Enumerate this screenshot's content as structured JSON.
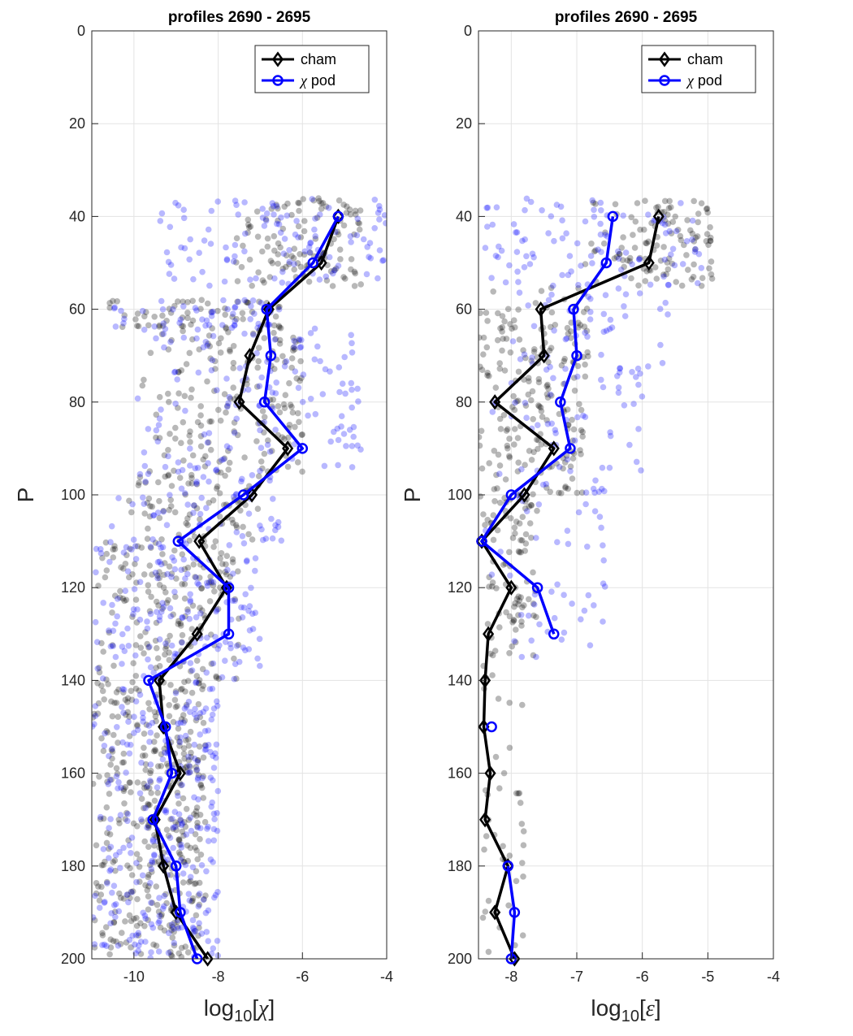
{
  "chart_data": [
    {
      "type": "line",
      "title": "profiles 2690 - 2695",
      "xlabel": {
        "prefix": "log",
        "sub": "10",
        "open": "[",
        "symbol": "χ",
        "close": "]"
      },
      "ylabel": "P",
      "xlim": [
        -11,
        -4
      ],
      "ylim": [
        0,
        200
      ],
      "y_reversed": true,
      "x_ticks": [
        -10,
        -8,
        -6,
        -4
      ],
      "x_tick_labels": [
        "-10",
        "-8",
        "-6",
        "-4"
      ],
      "y_ticks": [
        0,
        20,
        40,
        60,
        80,
        100,
        120,
        140,
        160,
        180,
        200
      ],
      "y_tick_labels": [
        "0",
        "20",
        "40",
        "60",
        "80",
        "100",
        "120",
        "140",
        "160",
        "180",
        "200"
      ],
      "grid": true,
      "legend_position": "top-right",
      "series": [
        {
          "name": "cham",
          "color": "#000000",
          "marker": "diamond",
          "points": [
            [
              -5.15,
              40
            ],
            [
              -5.55,
              50
            ],
            [
              -6.8,
              60
            ],
            [
              -7.25,
              70
            ],
            [
              -7.5,
              80
            ],
            [
              -6.35,
              90
            ],
            [
              -7.2,
              100
            ],
            [
              -8.45,
              110
            ],
            [
              -7.8,
              120
            ],
            [
              -8.5,
              130
            ],
            [
              -9.4,
              140
            ],
            [
              -9.3,
              150
            ],
            [
              -8.9,
              160
            ],
            [
              -9.5,
              170
            ],
            [
              -9.3,
              180
            ],
            [
              -9.0,
              190
            ],
            [
              -8.25,
              200
            ]
          ]
        },
        {
          "name": "χ pod",
          "name_parts": {
            "symbol": "χ",
            "rest": " pod"
          },
          "color": "#0000ff",
          "marker": "circle",
          "points": [
            [
              -5.15,
              40
            ],
            [
              -5.75,
              50
            ],
            [
              -6.85,
              60
            ],
            [
              -6.75,
              70
            ],
            [
              -6.9,
              80
            ],
            [
              -6.0,
              90
            ],
            [
              -7.4,
              100
            ],
            [
              -8.95,
              110
            ],
            [
              -7.75,
              120
            ],
            [
              -7.75,
              130
            ],
            [
              -9.65,
              140
            ],
            [
              -9.25,
              150
            ],
            [
              -9.1,
              160
            ],
            [
              -9.55,
              170
            ],
            [
              -9.0,
              180
            ],
            [
              -8.9,
              190
            ],
            [
              -8.5,
              200
            ]
          ]
        }
      ],
      "scatter_clouds": [
        {
          "color": "#000000",
          "opacity": 0.28,
          "bands": [
            {
              "p": [
                36,
                55
              ],
              "x": [
                -7.6,
                -4.6
              ],
              "n": 120
            },
            {
              "p": [
                58,
                64
              ],
              "x": [
                -10.6,
                -6.5
              ],
              "n": 60
            },
            {
              "p": [
                64,
                95
              ],
              "x": [
                -9.8,
                -6.0
              ],
              "n": 170
            },
            {
              "p": [
                95,
                110
              ],
              "x": [
                -10.4,
                -7.0
              ],
              "n": 80
            },
            {
              "p": [
                110,
                140
              ],
              "x": [
                -10.9,
                -7.5
              ],
              "n": 170
            },
            {
              "p": [
                140,
                200
              ],
              "x": [
                -11.0,
                -8.3
              ],
              "n": 380
            }
          ]
        },
        {
          "color": "#0000ff",
          "opacity": 0.28,
          "bands": [
            {
              "p": [
                36,
                55
              ],
              "x": [
                -9.4,
                -4.0
              ],
              "n": 110
            },
            {
              "p": [
                58,
                64
              ],
              "x": [
                -11.0,
                -6.5
              ],
              "n": 50
            },
            {
              "p": [
                64,
                95
              ],
              "x": [
                -10.0,
                -4.6
              ],
              "n": 140
            },
            {
              "p": [
                95,
                110
              ],
              "x": [
                -10.6,
                -6.5
              ],
              "n": 60
            },
            {
              "p": [
                110,
                140
              ],
              "x": [
                -11.0,
                -7.0
              ],
              "n": 160
            },
            {
              "p": [
                140,
                200
              ],
              "x": [
                -11.0,
                -8.0
              ],
              "n": 280
            }
          ]
        }
      ]
    },
    {
      "type": "line",
      "title": "profiles 2690 - 2695",
      "xlabel": {
        "prefix": "log",
        "sub": "10",
        "open": "[",
        "symbol": "ε",
        "close": "]"
      },
      "ylabel": "P",
      "xlim": [
        -8.5,
        -4
      ],
      "ylim": [
        0,
        200
      ],
      "y_reversed": true,
      "x_ticks": [
        -8,
        -7,
        -6,
        -5,
        -4
      ],
      "x_tick_labels": [
        "-8",
        "-7",
        "-6",
        "-5",
        "-4"
      ],
      "y_ticks": [
        0,
        20,
        40,
        60,
        80,
        100,
        120,
        140,
        160,
        180,
        200
      ],
      "y_tick_labels": [
        "0",
        "20",
        "40",
        "60",
        "80",
        "100",
        "120",
        "140",
        "160",
        "180",
        "200"
      ],
      "grid": true,
      "legend_position": "top-right",
      "series": [
        {
          "name": "cham",
          "color": "#000000",
          "marker": "diamond",
          "points": [
            [
              -5.75,
              40
            ],
            [
              -5.9,
              50
            ],
            [
              -7.55,
              60
            ],
            [
              -7.5,
              70
            ],
            [
              -8.25,
              80
            ],
            [
              -7.35,
              90
            ],
            [
              -7.8,
              100
            ],
            [
              -8.45,
              110
            ],
            [
              -8.0,
              120
            ],
            [
              -8.35,
              130
            ],
            [
              -8.4,
              140
            ],
            [
              -8.42,
              150
            ],
            [
              -8.32,
              160
            ],
            [
              -8.4,
              170
            ],
            [
              -8.05,
              180
            ],
            [
              -8.25,
              190
            ],
            [
              -7.95,
              200
            ]
          ]
        },
        {
          "name": "χ pod",
          "name_parts": {
            "symbol": "χ",
            "rest": " pod"
          },
          "color": "#0000ff",
          "marker": "circle",
          "points": [
            [
              -6.45,
              40
            ],
            [
              -6.55,
              50
            ],
            [
              -7.05,
              60
            ],
            [
              -7.0,
              70
            ],
            [
              -7.25,
              80
            ],
            [
              -7.1,
              90
            ],
            [
              -8.0,
              100
            ],
            [
              -8.45,
              110
            ],
            [
              -7.6,
              120
            ],
            [
              -7.35,
              130
            ],
            [
              null,
              140
            ],
            [
              -8.3,
              150
            ],
            [
              null,
              160
            ],
            [
              null,
              170
            ],
            [
              -8.05,
              180
            ],
            [
              -7.95,
              190
            ],
            [
              -8.0,
              200
            ]
          ]
        }
      ],
      "scatter_clouds": [
        {
          "color": "#000000",
          "opacity": 0.28,
          "bands": [
            {
              "p": [
                36,
                55
              ],
              "x": [
                -6.9,
                -4.9
              ],
              "n": 110
            },
            {
              "p": [
                55,
                75
              ],
              "x": [
                -8.5,
                -6.8
              ],
              "n": 90
            },
            {
              "p": [
                75,
                100
              ],
              "x": [
                -8.5,
                -6.9
              ],
              "n": 110
            },
            {
              "p": [
                100,
                135
              ],
              "x": [
                -8.5,
                -7.6
              ],
              "n": 90
            },
            {
              "p": [
                135,
                200
              ],
              "x": [
                -8.5,
                -7.8
              ],
              "n": 40
            }
          ]
        },
        {
          "color": "#0000ff",
          "opacity": 0.28,
          "bands": [
            {
              "p": [
                36,
                55
              ],
              "x": [
                -8.4,
                -5.0
              ],
              "n": 100
            },
            {
              "p": [
                55,
                75
              ],
              "x": [
                -8.2,
                -5.6
              ],
              "n": 55
            },
            {
              "p": [
                75,
                100
              ],
              "x": [
                -8.4,
                -6.0
              ],
              "n": 55
            },
            {
              "p": [
                100,
                135
              ],
              "x": [
                -8.5,
                -6.5
              ],
              "n": 45
            }
          ]
        }
      ]
    }
  ]
}
